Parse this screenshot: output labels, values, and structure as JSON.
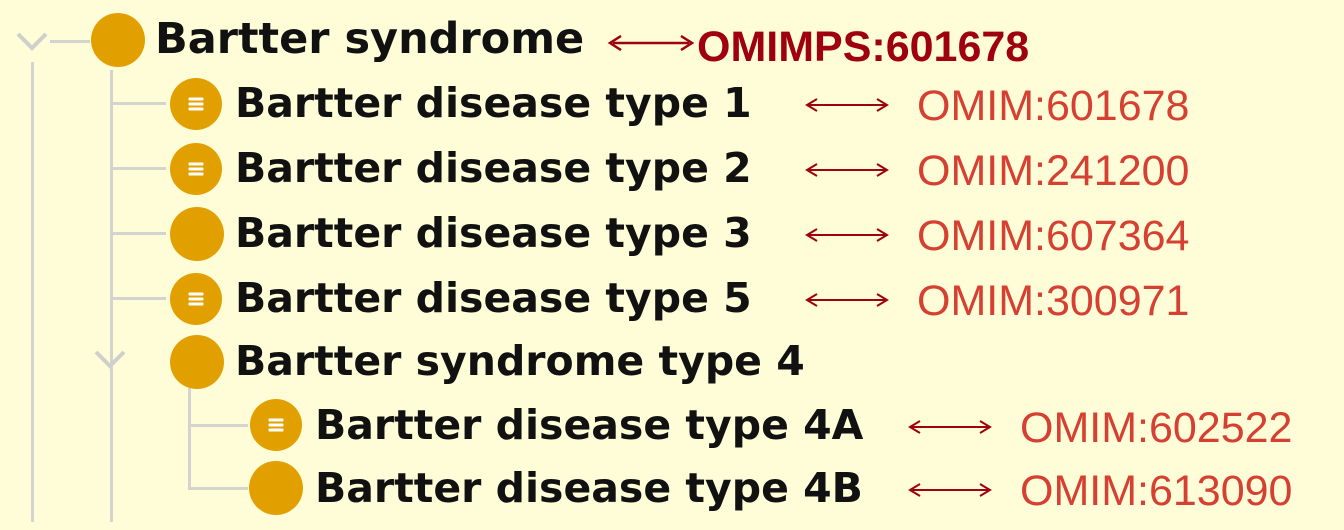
{
  "root": {
    "label": "Bartter syndrome",
    "omim": "OMIMPS:601678"
  },
  "children": [
    {
      "label": "Bartter disease type 1",
      "omim": "OMIM:601678",
      "has_lines": true
    },
    {
      "label": "Bartter disease type 2",
      "omim": "OMIM:241200",
      "has_lines": true
    },
    {
      "label": "Bartter disease type 3",
      "omim": "OMIM:607364",
      "has_lines": false
    },
    {
      "label": "Bartter disease type 5",
      "omim": "OMIM:300971",
      "has_lines": true
    }
  ],
  "subgroup": {
    "label": "Bartter syndrome type 4",
    "children": [
      {
        "label": "Bartter disease type 4A",
        "omim": "OMIM:602522",
        "has_lines": true
      },
      {
        "label": "Bartter disease type 4B",
        "omim": "OMIM:613090",
        "has_lines": false
      }
    ]
  },
  "colors": {
    "background": "#fefdd8",
    "node_dot": "#e2a000",
    "omim_text": "#d64033",
    "omimps_text": "#9e0010",
    "arrow": "#9e0010",
    "tree_lines": "#d3d3d0"
  },
  "icons": {
    "expanded": "chevron-down-icon",
    "node": "class-node-icon",
    "node_with_equivalents": "equivalent-class-node-icon",
    "mapping": "double-arrow-icon"
  }
}
